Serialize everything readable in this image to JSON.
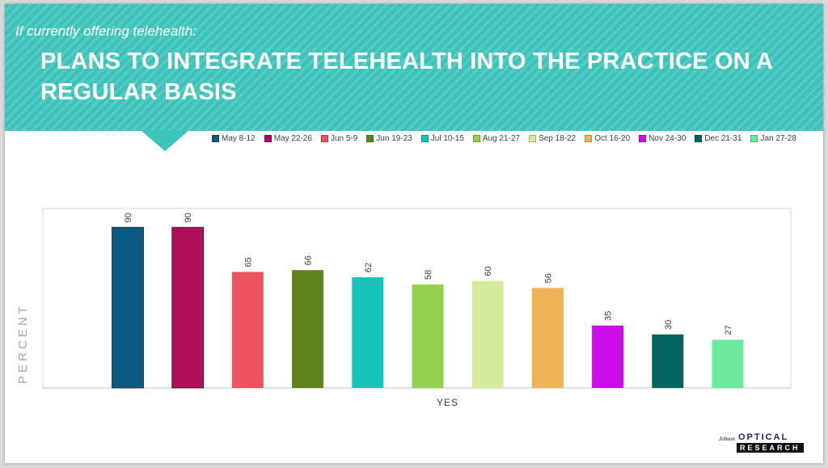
{
  "header": {
    "subtitle": "If currently offering telehealth:",
    "title": "PLANS TO INTEGRATE TELEHEALTH INTO THE PRACTICE ON A REGULAR BASIS"
  },
  "chart_data": {
    "type": "bar",
    "categories": [
      "YES"
    ],
    "xlabel": "YES",
    "ylabel": "PERCENT",
    "ylim": [
      0,
      100
    ],
    "grid": false,
    "legend_position": "top",
    "series": [
      {
        "name": "May 8-12",
        "values": [
          90
        ],
        "color": "#0b5a80"
      },
      {
        "name": "May 22-26",
        "values": [
          90
        ],
        "color": "#ad0f5a"
      },
      {
        "name": "Jun 5-9",
        "values": [
          65
        ],
        "color": "#ee5460"
      },
      {
        "name": "Jun 19-23",
        "values": [
          66
        ],
        "color": "#5f821c"
      },
      {
        "name": "Jul 10-15",
        "values": [
          62
        ],
        "color": "#17c4ba"
      },
      {
        "name": "Aug 21-27",
        "values": [
          58
        ],
        "color": "#92d14f"
      },
      {
        "name": "Sep 18-22",
        "values": [
          60
        ],
        "color": "#d5ec9d"
      },
      {
        "name": "Oct 16-20",
        "values": [
          56
        ],
        "color": "#efb255"
      },
      {
        "name": "Nov 24-30",
        "values": [
          35
        ],
        "color": "#c90fe6"
      },
      {
        "name": "Dec 21-31",
        "values": [
          30
        ],
        "color": "#03645e"
      },
      {
        "name": "Jan 27-28",
        "values": [
          27
        ],
        "color": "#6deb9d"
      }
    ]
  },
  "logo": {
    "brand": "Jobson",
    "top": "OPTICAL",
    "bottom": "RESEARCH"
  }
}
